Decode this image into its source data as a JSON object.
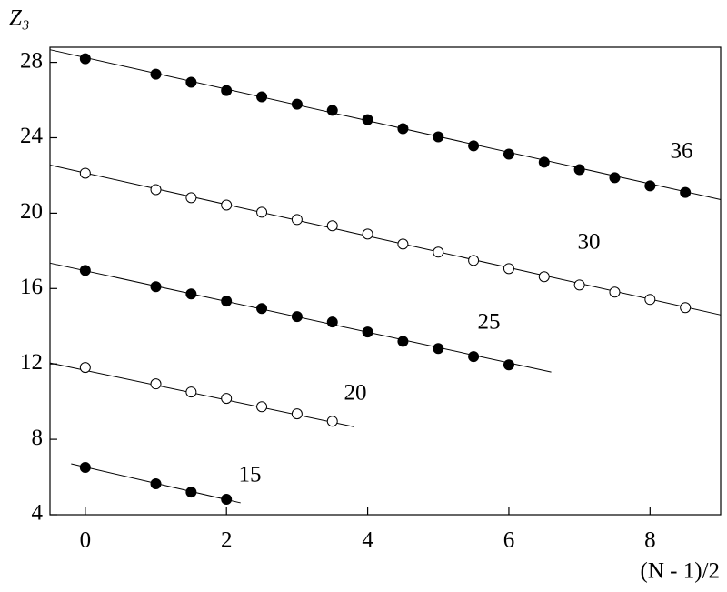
{
  "chart_data": {
    "type": "scatter",
    "x_label": "(N - 1)/2",
    "y_label": "Z₃",
    "xlim": [
      -0.5,
      9
    ],
    "ylim": [
      4,
      28.8
    ],
    "xticks": [
      0,
      2,
      4,
      6,
      8
    ],
    "yticks": [
      4,
      8,
      12,
      16,
      20,
      24,
      28
    ],
    "series": [
      {
        "name": "36",
        "color": "#000",
        "marker": "filled",
        "x": [
          0,
          1,
          1.5,
          2,
          2.5,
          3,
          3.5,
          4,
          4.5,
          5,
          5.5,
          6,
          6.5,
          7,
          7.5,
          8,
          8.5
        ],
        "values": [
          28.19,
          27.37,
          26.94,
          26.5,
          26.17,
          25.78,
          25.45,
          24.96,
          24.48,
          24.05,
          23.57,
          23.13,
          22.7,
          22.31,
          21.88,
          21.45,
          21.1
        ],
        "fit": {
          "x": [
            -0.5,
            9
          ],
          "y": [
            28.67,
            20.72
          ]
        }
      },
      {
        "name": "30",
        "color": "#000",
        "marker": "open",
        "x": [
          0,
          1,
          1.5,
          2,
          2.5,
          3,
          3.5,
          4,
          4.5,
          5,
          5.5,
          6,
          6.5,
          7,
          7.5,
          8,
          8.5
        ],
        "values": [
          22.12,
          21.25,
          20.82,
          20.43,
          20.05,
          19.66,
          19.33,
          18.89,
          18.36,
          17.93,
          17.49,
          17.06,
          16.63,
          16.19,
          15.81,
          15.42,
          14.99
        ],
        "fit": {
          "x": [
            -0.5,
            9
          ],
          "y": [
            22.55,
            14.6
          ]
        }
      },
      {
        "name": "25",
        "color": "#000",
        "marker": "filled",
        "x": [
          0,
          1,
          1.5,
          2,
          2.5,
          3,
          3.5,
          4,
          4.5,
          5,
          5.5,
          6
        ],
        "values": [
          16.96,
          16.1,
          15.71,
          15.33,
          14.94,
          14.51,
          14.22,
          13.69,
          13.2,
          12.82,
          12.39,
          11.95
        ],
        "fit": {
          "x": [
            -0.5,
            6.6
          ],
          "y": [
            17.35,
            11.57
          ]
        }
      },
      {
        "name": "20",
        "color": "#000",
        "marker": "open",
        "x": [
          0,
          1,
          1.5,
          2,
          2.5,
          3,
          3.5
        ],
        "values": [
          11.81,
          10.94,
          10.51,
          10.17,
          9.73,
          9.35,
          8.96
        ],
        "fit": {
          "x": [
            -0.5,
            3.8
          ],
          "y": [
            12.05,
            8.67
          ]
        }
      },
      {
        "name": "15",
        "color": "#000",
        "marker": "filled",
        "x": [
          0,
          1,
          1.5,
          2
        ],
        "values": [
          6.51,
          5.64,
          5.2,
          4.82
        ],
        "fit": {
          "x": [
            -0.2,
            2.2
          ],
          "y": [
            6.7,
            4.63
          ]
        }
      }
    ]
  }
}
